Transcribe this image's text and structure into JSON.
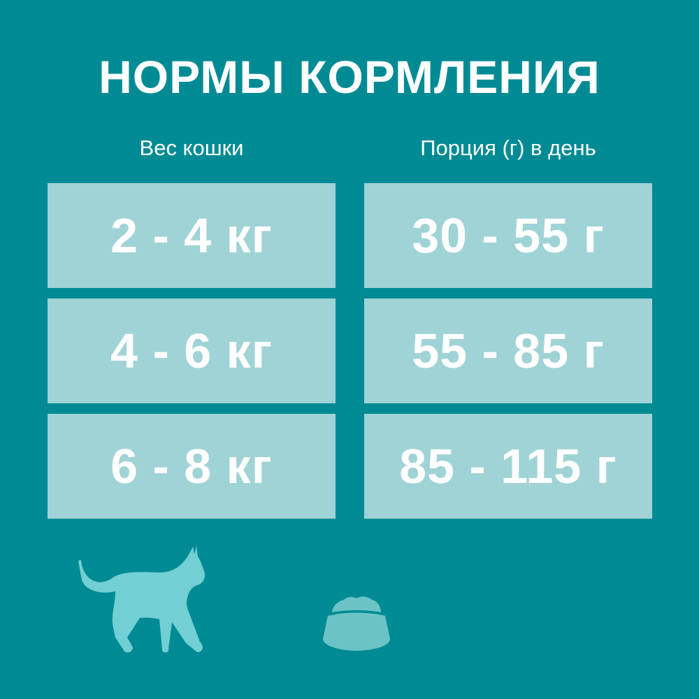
{
  "title": "НОРМЫ КОРМЛЕНИЯ",
  "columns": [
    "Вес кошки",
    "Порция (г) в день"
  ],
  "rows": [
    {
      "weight": "2 - 4 кг",
      "portion": "30 - 55 г"
    },
    {
      "weight": "4 - 6 кг",
      "portion": "55 - 85 г"
    },
    {
      "weight": "6 - 8 кг",
      "portion": "85 - 115 г"
    }
  ],
  "colors": {
    "background": "#008b94",
    "cell": "#a0d3d6",
    "cat": "#72cfd4",
    "bowl": "#6cc3c6"
  },
  "icons": [
    "cat-silhouette-icon",
    "food-bowl-icon"
  ]
}
